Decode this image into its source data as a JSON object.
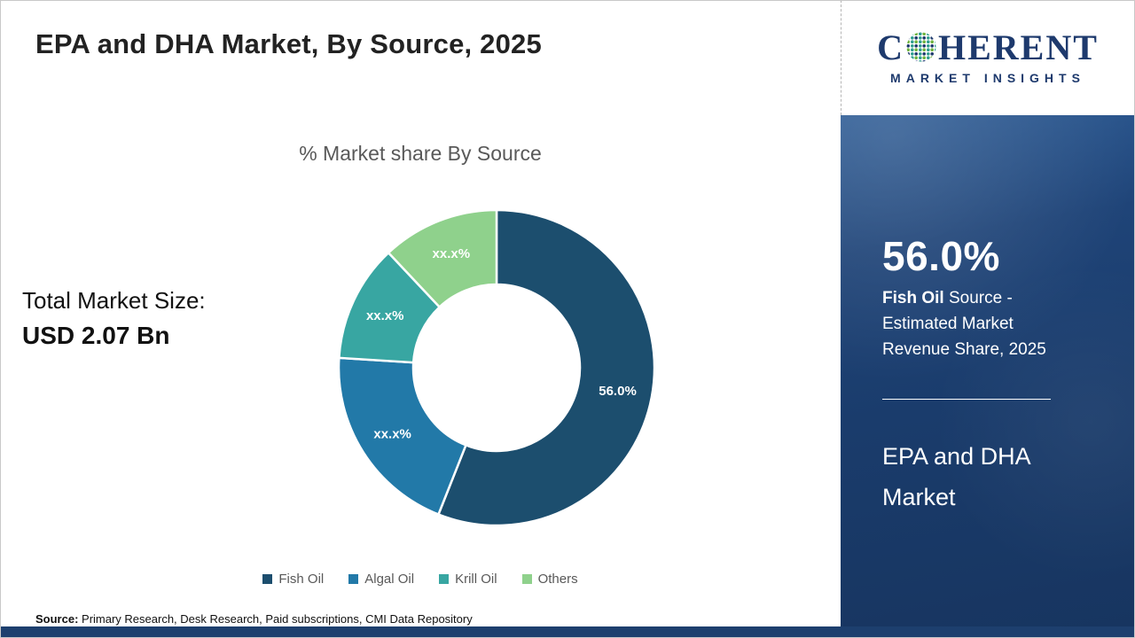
{
  "header": {
    "title": "EPA and DHA Market, By Source, 2025"
  },
  "left_panel": {
    "total_market_label": "Total Market Size:",
    "total_market_value": "USD 2.07 Bn"
  },
  "chart_data": {
    "type": "pie",
    "subtype": "donut",
    "title": "% Market share By Source",
    "categories": [
      "Fish Oil",
      "Algal Oil",
      "Krill Oil",
      "Others"
    ],
    "values": [
      56.0,
      20.0,
      12.0,
      12.0
    ],
    "value_labels": [
      "56.0%",
      "xx.x%",
      "xx.x%",
      "xx.x%"
    ],
    "colors": [
      "#1c4e6e",
      "#2279a8",
      "#38a6a2",
      "#8fd18c"
    ],
    "start_angle_deg": -90,
    "direction": "clockwise",
    "legend_position": "bottom"
  },
  "footer": {
    "source_label": "Source:",
    "source_text": " Primary Research, Desk Research, Paid subscriptions, CMI Data Repository"
  },
  "side_panel": {
    "background": "#1d3f6e",
    "stat_value": "56.0%",
    "stat_desc_bold": "Fish Oil",
    "stat_desc_rest": " Source - Estimated Market Revenue Share, 2025",
    "market_name": "EPA and DHA Market"
  },
  "logo": {
    "word_start": "C",
    "word_end": "HERENT",
    "subtitle": "MARKET INSIGHTS"
  }
}
